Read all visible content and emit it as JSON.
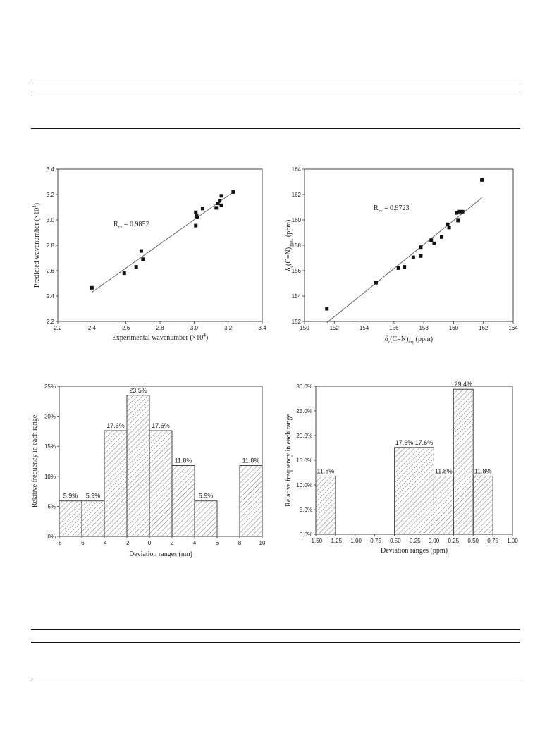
{
  "chart_data": [
    {
      "type": "scatter",
      "xlabel_main": "Experimental wavenumber (×10",
      "xlabel_sup": "4",
      "xlabel_end": ")",
      "ylabel": "Predicted wavenumber (×10",
      "ylabel_sup": "4",
      "ylabel_end": ")",
      "xlim": [
        2.2,
        3.4
      ],
      "ylim": [
        2.2,
        3.4
      ],
      "xticks": [
        "2.2",
        "2.4",
        "2.6",
        "2.8",
        "3.0",
        "3.2",
        "3.4"
      ],
      "yticks": [
        "2.2",
        "2.4",
        "2.6",
        "2.8",
        "3.0",
        "3.2",
        "3.4"
      ],
      "annotation_R": "R",
      "annotation_sub": "cv",
      "annotation_value": " = 0.9852",
      "fit_line": [
        [
          2.4,
          2.43
        ],
        [
          3.23,
          3.22
        ]
      ],
      "points": [
        [
          2.4,
          2.465
        ],
        [
          2.59,
          2.58
        ],
        [
          2.66,
          2.63
        ],
        [
          2.69,
          2.755
        ],
        [
          2.7,
          2.69
        ],
        [
          3.01,
          3.06
        ],
        [
          3.01,
          2.955
        ],
        [
          3.015,
          3.03
        ],
        [
          3.02,
          3.02
        ],
        [
          3.05,
          3.09
        ],
        [
          3.13,
          3.095
        ],
        [
          3.14,
          3.13
        ],
        [
          3.15,
          3.15
        ],
        [
          3.16,
          3.19
        ],
        [
          3.16,
          3.115
        ],
        [
          3.23,
          3.22
        ]
      ]
    },
    {
      "type": "scatter",
      "xlabel_main": "δ",
      "xlabel_sub1": "c",
      "xlabel_mid": "(C=N)",
      "xlabel_sub2": "exp.",
      "xlabel_end": "(ppm)",
      "ylabel_main": "δ",
      "ylabel_sub1": "c",
      "ylabel_mid": "(C=N)",
      "ylabel_sub2": "pred.",
      "ylabel_end": " (ppm)",
      "xlim": [
        150,
        164
      ],
      "ylim": [
        152,
        164
      ],
      "xticks": [
        "150",
        "152",
        "154",
        "156",
        "158",
        "160",
        "162",
        "164"
      ],
      "yticks": [
        "152",
        "154",
        "156",
        "158",
        "160",
        "162",
        "164"
      ],
      "annotation_R": "R",
      "annotation_sub": "cv",
      "annotation_value": " = 0.9723",
      "fit_line": [
        [
          151.5,
          151.9
        ],
        [
          161.9,
          161.75
        ]
      ],
      "points": [
        [
          151.5,
          153.0
        ],
        [
          154.8,
          155.05
        ],
        [
          156.3,
          156.2
        ],
        [
          156.7,
          156.3
        ],
        [
          157.3,
          157.05
        ],
        [
          157.8,
          157.85
        ],
        [
          157.8,
          157.15
        ],
        [
          158.5,
          158.4
        ],
        [
          158.7,
          158.15
        ],
        [
          159.2,
          158.65
        ],
        [
          159.6,
          159.65
        ],
        [
          159.7,
          159.4
        ],
        [
          160.2,
          160.55
        ],
        [
          160.3,
          159.95
        ],
        [
          160.4,
          160.65
        ],
        [
          160.6,
          160.65
        ],
        [
          161.9,
          163.15
        ]
      ]
    },
    {
      "type": "bar",
      "xlabel": "Deviation ranges (nm)",
      "ylabel": "Relative frequency in each range",
      "xlim": [
        -8,
        10
      ],
      "ylim": [
        0,
        25
      ],
      "xticks": [
        "-8",
        "-6",
        "-4",
        "-2",
        "0",
        "2",
        "4",
        "6",
        "8",
        "10"
      ],
      "yticks": [
        "0%",
        "5%",
        "10%",
        "15%",
        "20%",
        "25%"
      ],
      "bins": [
        {
          "from": -8,
          "to": -6,
          "value": 5.9,
          "label": "5.9%"
        },
        {
          "from": -6,
          "to": -4,
          "value": 5.9,
          "label": "5.9%"
        },
        {
          "from": -4,
          "to": -2,
          "value": 17.6,
          "label": "17.6%"
        },
        {
          "from": -2,
          "to": 0,
          "value": 23.5,
          "label": "23.5%"
        },
        {
          "from": 0,
          "to": 2,
          "value": 17.6,
          "label": "17.6%"
        },
        {
          "from": 2,
          "to": 4,
          "value": 11.8,
          "label": "11.8%"
        },
        {
          "from": 4,
          "to": 6,
          "value": 5.9,
          "label": "5.9%"
        },
        {
          "from": 8,
          "to": 10,
          "value": 11.8,
          "label": "11.8%"
        }
      ]
    },
    {
      "type": "bar",
      "xlabel": "Deviation ranges (ppm)",
      "ylabel": "Relative frequency in each range",
      "xlim": [
        -1.5,
        1.0
      ],
      "ylim": [
        0,
        30
      ],
      "xticks": [
        "-1.50",
        "-1.25",
        "-1.00",
        "-0.75",
        "-0.50",
        "-0.25",
        "0.00",
        "0.25",
        "0.50",
        "0.75",
        "1.00"
      ],
      "yticks": [
        "0.0%",
        "5.0%",
        "10.0%",
        "15.0%",
        "20.0%",
        "25.0%",
        "30.0%"
      ],
      "bins": [
        {
          "from": -1.5,
          "to": -1.25,
          "value": 11.8,
          "label": "11.8%"
        },
        {
          "from": -0.5,
          "to": -0.25,
          "value": 17.6,
          "label": "17.6%"
        },
        {
          "from": -0.25,
          "to": 0.0,
          "value": 17.6,
          "label": "17.6%"
        },
        {
          "from": 0.0,
          "to": 0.25,
          "value": 11.8,
          "label": "11.8%"
        },
        {
          "from": 0.25,
          "to": 0.5,
          "value": 29.4,
          "label": "29.4%"
        },
        {
          "from": 0.5,
          "to": 0.75,
          "value": 11.8,
          "label": "11.8%"
        }
      ]
    }
  ]
}
